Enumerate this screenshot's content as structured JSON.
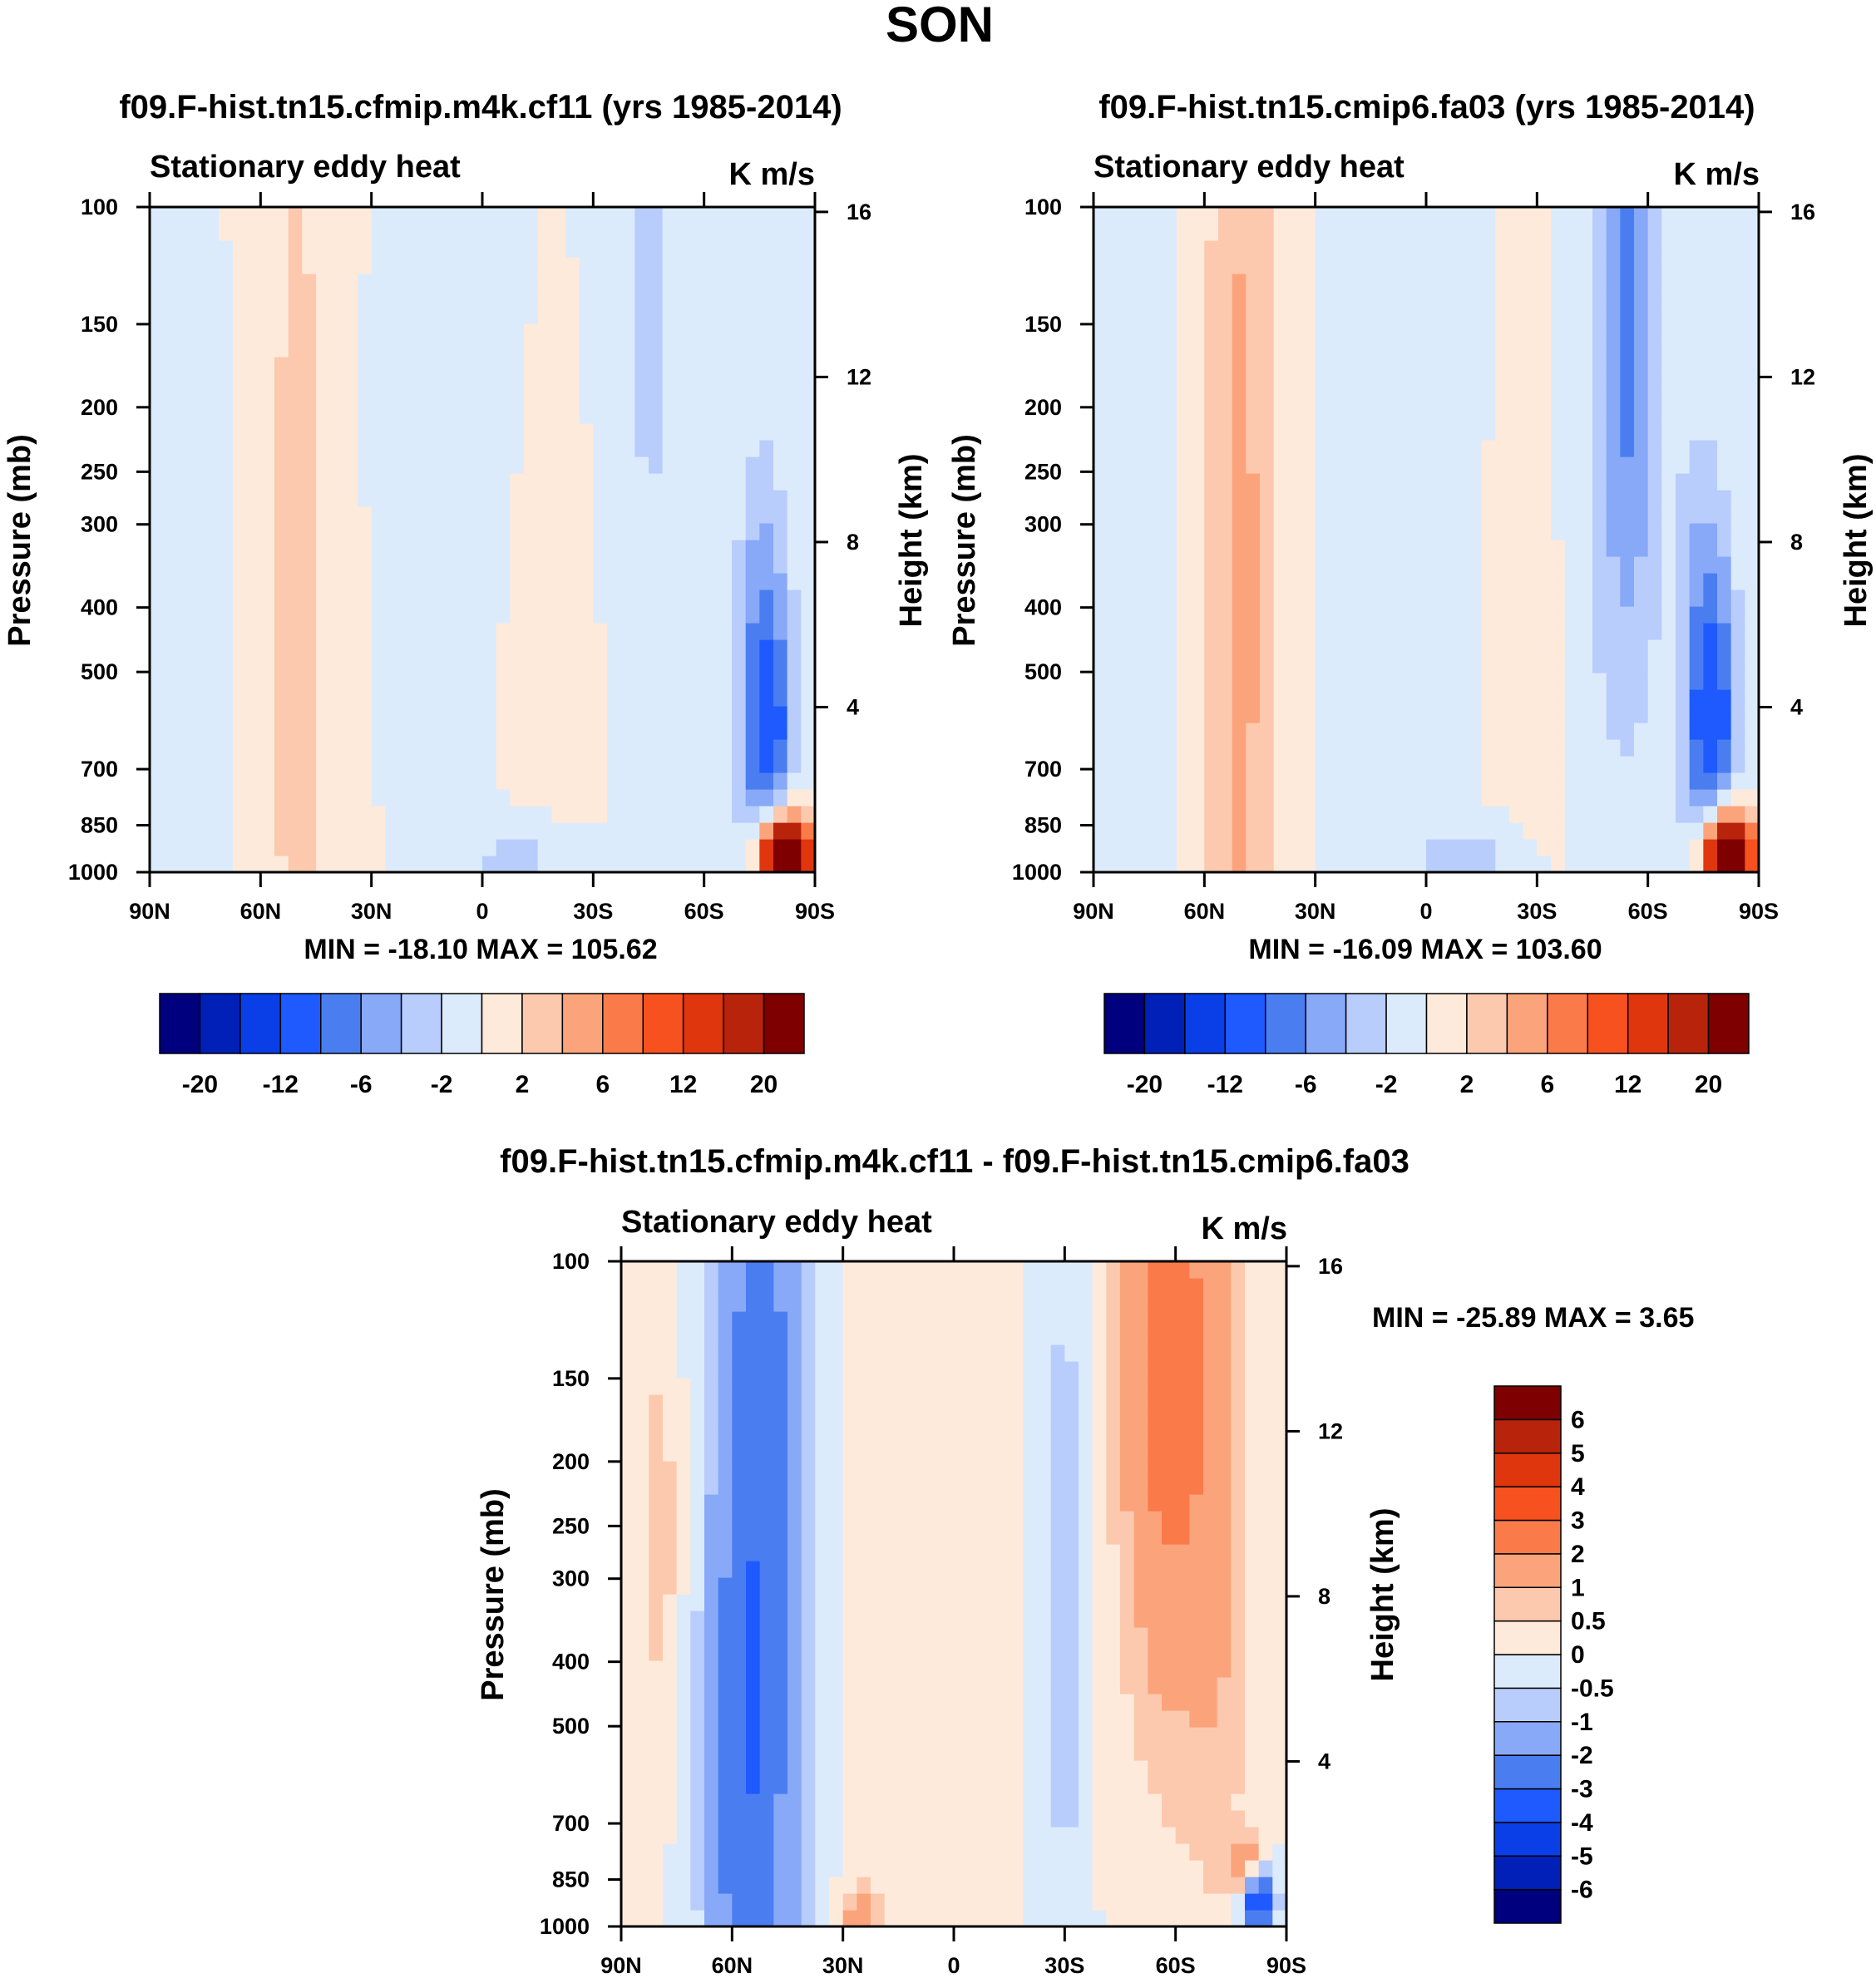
{
  "figure": {
    "title": "SON"
  },
  "chart_data": [
    {
      "type": "heatmap",
      "id": "panel1",
      "title": "f09.F-hist.tn15.cfmip.m4k.cf11 (yrs 1985-2014)",
      "left_string": "Stationary eddy heat",
      "right_string": "K m/s",
      "ylabel": "Pressure (mb)",
      "ylabel_right": "Height (km)",
      "pressure_ticks": [
        100,
        150,
        200,
        250,
        300,
        400,
        500,
        700,
        850,
        1000
      ],
      "height_ticks": [
        16,
        12,
        8,
        4
      ],
      "x_ticks": [
        "90N",
        "60N",
        "30N",
        "0",
        "30S",
        "60S",
        "90S"
      ],
      "stats": "MIN = -18.10  MAX = 105.62",
      "features": [
        {
          "lat": -82,
          "p": 950,
          "value": 40,
          "slat": 4,
          "sp": 70
        },
        {
          "lat": -80,
          "p": 880,
          "value": 8,
          "slat": 5,
          "sp": 120
        },
        {
          "lat": -78,
          "p": 700,
          "value": -8,
          "slat": 5,
          "sp": 300
        },
        {
          "lat": -75,
          "p": 450,
          "value": -4,
          "slat": 5,
          "sp": 250
        },
        {
          "lat": -45,
          "p": 150,
          "value": -2.5,
          "slat": 8,
          "sp": 120
        },
        {
          "lat": 50,
          "p": 400,
          "value": 2.5,
          "slat": 8,
          "sp": 900
        },
        {
          "lat": 78,
          "p": 450,
          "value": -1.5,
          "slat": 6,
          "sp": 350
        },
        {
          "lat": -10,
          "p": 950,
          "value": -3,
          "slat": 10,
          "sp": 80
        },
        {
          "lat": -20,
          "p": 450,
          "value": 0.6,
          "slat": 10,
          "sp": 350
        },
        {
          "lat": 10,
          "p": 200,
          "value": -0.6,
          "slat": 15,
          "sp": 150
        }
      ],
      "colorbar": {
        "orientation": "horizontal",
        "tick_labels": [
          "-20",
          "-12",
          "-6",
          "-2",
          "2",
          "6",
          "12",
          "20"
        ],
        "levels": [
          -24,
          -20,
          -16,
          -12,
          -8,
          -6,
          -4,
          -2,
          0,
          2,
          4,
          6,
          8,
          12,
          16,
          20,
          24
        ],
        "colors": [
          "#00007f",
          "#0020b8",
          "#0a3ee6",
          "#1e5aff",
          "#4a7ef0",
          "#88a8f8",
          "#b8cdfc",
          "#dcebfb",
          "#feeadb",
          "#fcc9ae",
          "#fba47c",
          "#fb7a4a",
          "#f6511e",
          "#e0360d",
          "#b8230c",
          "#7f0000"
        ]
      }
    },
    {
      "type": "heatmap",
      "id": "panel2",
      "title": "f09.F-hist.tn15.cmip6.fa03 (yrs 1985-2014)",
      "left_string": "Stationary eddy heat",
      "right_string": "K m/s",
      "ylabel": "Pressure (mb)",
      "ylabel_right": "Height (km)",
      "pressure_ticks": [
        100,
        150,
        200,
        250,
        300,
        400,
        500,
        700,
        850,
        1000
      ],
      "height_ticks": [
        16,
        12,
        8,
        4
      ],
      "x_ticks": [
        "90N",
        "60N",
        "30N",
        "0",
        "30S",
        "60S",
        "90S"
      ],
      "stats": "MIN = -16.09  MAX = 103.60",
      "features": [
        {
          "lat": -82,
          "p": 950,
          "value": 38,
          "slat": 4,
          "sp": 70
        },
        {
          "lat": -80,
          "p": 870,
          "value": 8,
          "slat": 5,
          "sp": 120
        },
        {
          "lat": -78,
          "p": 680,
          "value": -8,
          "slat": 5,
          "sp": 300
        },
        {
          "lat": -75,
          "p": 450,
          "value": -4,
          "slat": 5,
          "sp": 250
        },
        {
          "lat": -55,
          "p": 120,
          "value": -5,
          "slat": 6,
          "sp": 100
        },
        {
          "lat": -52,
          "p": 250,
          "value": -2.5,
          "slat": 9,
          "sp": 250
        },
        {
          "lat": 50,
          "p": 380,
          "value": 4.5,
          "slat": 7,
          "sp": 900
        },
        {
          "lat": 78,
          "p": 450,
          "value": -1.5,
          "slat": 6,
          "sp": 350
        },
        {
          "lat": -10,
          "p": 950,
          "value": -3,
          "slat": 10,
          "sp": 80
        },
        {
          "lat": -30,
          "p": 400,
          "value": 0.6,
          "slat": 10,
          "sp": 350
        },
        {
          "lat": 5,
          "p": 250,
          "value": -0.6,
          "slat": 15,
          "sp": 200
        }
      ],
      "colorbar": {
        "orientation": "horizontal",
        "tick_labels": [
          "-20",
          "-12",
          "-6",
          "-2",
          "2",
          "6",
          "12",
          "20"
        ],
        "levels": [
          -24,
          -20,
          -16,
          -12,
          -8,
          -6,
          -4,
          -2,
          0,
          2,
          4,
          6,
          8,
          12,
          16,
          20,
          24
        ],
        "colors": [
          "#00007f",
          "#0020b8",
          "#0a3ee6",
          "#1e5aff",
          "#4a7ef0",
          "#88a8f8",
          "#b8cdfc",
          "#dcebfb",
          "#feeadb",
          "#fcc9ae",
          "#fba47c",
          "#fb7a4a",
          "#f6511e",
          "#e0360d",
          "#b8230c",
          "#7f0000"
        ]
      }
    },
    {
      "type": "heatmap",
      "id": "panel3",
      "title": "f09.F-hist.tn15.cfmip.m4k.cf11 - f09.F-hist.tn15.cmip6.fa03",
      "left_string": "Stationary eddy heat",
      "right_string": "K m/s",
      "ylabel": "Pressure (mb)",
      "ylabel_right": "Height (km)",
      "pressure_ticks": [
        100,
        150,
        200,
        250,
        300,
        400,
        500,
        700,
        850,
        1000
      ],
      "height_ticks": [
        16,
        12,
        8,
        4
      ],
      "x_ticks": [
        "90N",
        "60N",
        "30N",
        "0",
        "30S",
        "60S",
        "90S"
      ],
      "stats": "MIN = -25.89  MAX =   3.65",
      "features": [
        {
          "lat": 52,
          "p": 250,
          "value": -2.6,
          "slat": 8,
          "sp": 500
        },
        {
          "lat": 60,
          "p": 600,
          "value": -1.2,
          "slat": 6,
          "sp": 500
        },
        {
          "lat": -58,
          "p": 140,
          "value": 2.6,
          "slat": 9,
          "sp": 120
        },
        {
          "lat": -72,
          "p": 300,
          "value": 0.8,
          "slat": 6,
          "sp": 300
        },
        {
          "lat": -82,
          "p": 900,
          "value": -5,
          "slat": 3,
          "sp": 70
        },
        {
          "lat": -80,
          "p": 830,
          "value": 2.5,
          "slat": 3,
          "sp": 60
        },
        {
          "lat": 80,
          "p": 250,
          "value": 0.8,
          "slat": 4,
          "sp": 120
        },
        {
          "lat": 25,
          "p": 950,
          "value": 1.5,
          "slat": 4,
          "sp": 60
        },
        {
          "lat": -30,
          "p": 300,
          "value": -0.8,
          "slat": 4,
          "sp": 300
        },
        {
          "lat": 10,
          "p": 400,
          "value": 0.3,
          "slat": 12,
          "sp": 400
        }
      ],
      "colorbar": {
        "orientation": "vertical",
        "tick_labels": [
          "6",
          "5",
          "4",
          "3",
          "2",
          "1",
          "0.5",
          "0",
          "-0.5",
          "-1",
          "-2",
          "-3",
          "-4",
          "-5",
          "-6"
        ],
        "levels": [
          -7,
          -6,
          -5,
          -4,
          -3,
          -2,
          -1,
          -0.5,
          0,
          0.5,
          1,
          2,
          3,
          4,
          5,
          6,
          7
        ],
        "colors": [
          "#00007f",
          "#0020b8",
          "#0a3ee6",
          "#1e5aff",
          "#4a7ef0",
          "#88a8f8",
          "#b8cdfc",
          "#dcebfb",
          "#feeadb",
          "#fcc9ae",
          "#fba47c",
          "#fb7a4a",
          "#f6511e",
          "#e0360d",
          "#b8230c",
          "#7f0000"
        ]
      }
    }
  ]
}
